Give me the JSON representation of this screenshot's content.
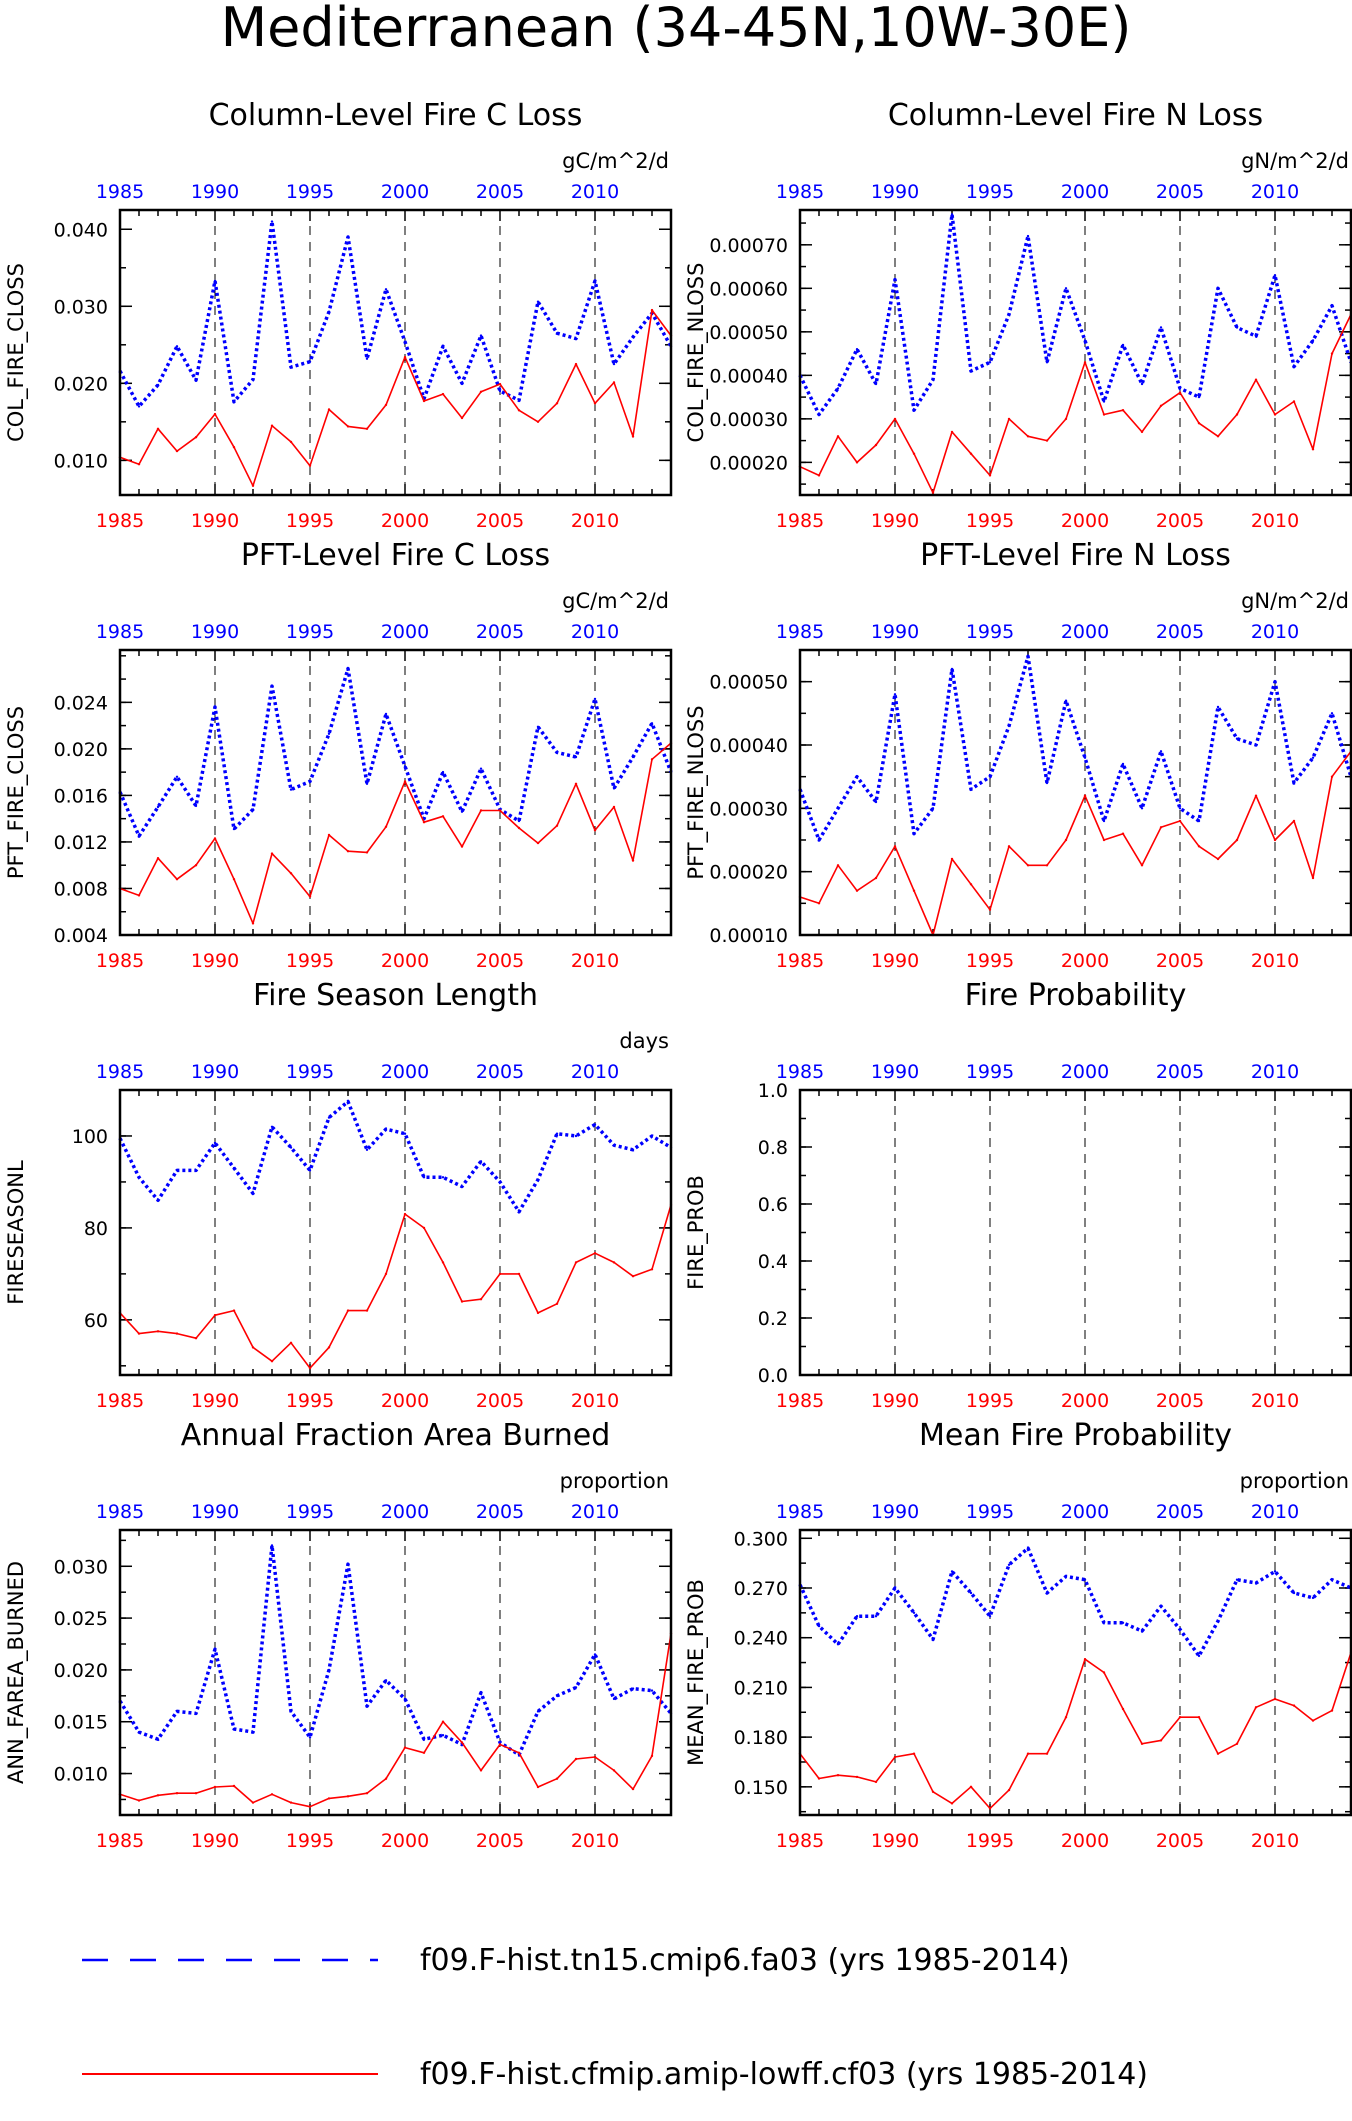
{
  "page_title": "Mediterranean (34-45N,10W-30E)",
  "legend": [
    {
      "label": "f09.F-hist.tn15.cmip6.fa03 (yrs 1985-2014)",
      "color": "#0000ff",
      "style": "dashed"
    },
    {
      "label": "f09.F-hist.cfmip.amip-lowff.cf03 (yrs 1985-2014)",
      "color": "#ff0000",
      "style": "solid"
    }
  ],
  "colors": {
    "top_axis": "#0000ff",
    "bottom_axis": "#ff0000",
    "blue_series": "#0000ff",
    "red_series": "#ff0000",
    "frame": "#000000"
  },
  "chart_data": [
    {
      "type": "line",
      "title": "Column-Level Fire C Loss",
      "units": "gC/m^2/d",
      "ylabel": "COL_FIRE_CLOSS",
      "xlim": [
        1985,
        2014
      ],
      "ylim": [
        0.0055,
        0.0425
      ],
      "yticks": [
        0.01,
        0.02,
        0.03,
        0.04
      ],
      "ytick_labels": [
        "0.010",
        "0.020",
        "0.030",
        "0.040"
      ],
      "xticks": [
        1985,
        1990,
        1995,
        2000,
        2005,
        2010
      ],
      "xtick_labels": [
        "1985",
        "1990",
        "1995",
        "2000",
        "2005",
        "2010"
      ],
      "grid": "dashed vertical lines at 1990, 1995, 2000, 2005, 2010",
      "x": [
        1985,
        1986,
        1987,
        1988,
        1989,
        1990,
        1991,
        1992,
        1993,
        1994,
        1995,
        1996,
        1997,
        1998,
        1999,
        2000,
        2001,
        2002,
        2003,
        2004,
        2005,
        2006,
        2007,
        2008,
        2009,
        2010,
        2011,
        2012,
        2013,
        2014
      ],
      "series": [
        {
          "values": [
            0.0216,
            0.017,
            0.0198,
            0.0248,
            0.0204,
            0.0333,
            0.0176,
            0.0205,
            0.041,
            0.0221,
            0.0228,
            0.0293,
            0.039,
            0.0232,
            0.0322,
            0.0254,
            0.018,
            0.0248,
            0.02,
            0.0262,
            0.019,
            0.0178,
            0.0306,
            0.0265,
            0.0258,
            0.0333,
            0.0225,
            0.026,
            0.0291,
            0.0248
          ]
        },
        {
          "values": [
            0.0104,
            0.0095,
            0.0141,
            0.0112,
            0.013,
            0.016,
            0.0117,
            0.0067,
            0.0145,
            0.0124,
            0.0093,
            0.0166,
            0.0144,
            0.0141,
            0.0172,
            0.0234,
            0.0177,
            0.0186,
            0.0155,
            0.0189,
            0.0199,
            0.0165,
            0.015,
            0.0174,
            0.0225,
            0.0174,
            0.0201,
            0.0131,
            0.0295,
            0.0262
          ]
        }
      ]
    },
    {
      "type": "line",
      "title": "Column-Level Fire N Loss",
      "units": "gN/m^2/d",
      "ylabel": "COL_FIRE_NLOSS",
      "xlim": [
        1985,
        2014
      ],
      "ylim": [
        0.000125,
        0.00078
      ],
      "yticks": [
        0.0002,
        0.0003,
        0.0004,
        0.0005,
        0.0006,
        0.0007
      ],
      "ytick_labels": [
        "0.00020",
        "0.00030",
        "0.00040",
        "0.00050",
        "0.00060",
        "0.00070"
      ],
      "xticks": [
        1985,
        1990,
        1995,
        2000,
        2005,
        2010
      ],
      "xtick_labels": [
        "1985",
        "1990",
        "1995",
        "2000",
        "2005",
        "2010"
      ],
      "grid": "dashed vertical lines at 1990, 1995, 2000, 2005, 2010",
      "x": [
        1985,
        1986,
        1987,
        1988,
        1989,
        1990,
        1991,
        1992,
        1993,
        1994,
        1995,
        1996,
        1997,
        1998,
        1999,
        2000,
        2001,
        2002,
        2003,
        2004,
        2005,
        2006,
        2007,
        2008,
        2009,
        2010,
        2011,
        2012,
        2013,
        2014
      ],
      "series": [
        {
          "values": [
            0.0004,
            0.00031,
            0.00037,
            0.00046,
            0.00038,
            0.00062,
            0.00032,
            0.00039,
            0.00077,
            0.00041,
            0.00043,
            0.00054,
            0.00072,
            0.00043,
            0.0006,
            0.00048,
            0.00034,
            0.00047,
            0.00038,
            0.00051,
            0.00037,
            0.00035,
            0.0006,
            0.00051,
            0.00049,
            0.00063,
            0.00042,
            0.00048,
            0.00056,
            0.00043
          ]
        },
        {
          "values": [
            0.00019,
            0.00017,
            0.00026,
            0.0002,
            0.00024,
            0.0003,
            0.00022,
            0.00013,
            0.00027,
            0.00022,
            0.00017,
            0.0003,
            0.00026,
            0.00025,
            0.0003,
            0.00043,
            0.00031,
            0.00032,
            0.00027,
            0.00033,
            0.00036,
            0.00029,
            0.00026,
            0.00031,
            0.00039,
            0.00031,
            0.00034,
            0.00023,
            0.00045,
            0.00054
          ]
        }
      ]
    },
    {
      "type": "line",
      "title": "PFT-Level Fire C Loss",
      "units": "gC/m^2/d",
      "ylabel": "PFT_FIRE_CLOSS",
      "xlim": [
        1985,
        2014
      ],
      "ylim": [
        0.004,
        0.0285
      ],
      "yticks": [
        0.004,
        0.008,
        0.012,
        0.016,
        0.02,
        0.024
      ],
      "ytick_labels": [
        "0.004",
        "0.008",
        "0.012",
        "0.016",
        "0.020",
        "0.024"
      ],
      "xticks": [
        1985,
        1990,
        1995,
        2000,
        2005,
        2010
      ],
      "xtick_labels": [
        "1985",
        "1990",
        "1995",
        "2000",
        "2005",
        "2010"
      ],
      "grid": "dashed vertical lines at 1990, 1995, 2000, 2005, 2010",
      "x": [
        1985,
        1986,
        1987,
        1988,
        1989,
        1990,
        1991,
        1992,
        1993,
        1994,
        1995,
        1996,
        1997,
        1998,
        1999,
        2000,
        2001,
        2002,
        2003,
        2004,
        2005,
        2006,
        2007,
        2008,
        2009,
        2010,
        2011,
        2012,
        2013,
        2014
      ],
      "series": [
        {
          "values": [
            0.0163,
            0.0125,
            0.015,
            0.0176,
            0.0151,
            0.0236,
            0.0131,
            0.0148,
            0.0254,
            0.0165,
            0.0172,
            0.0213,
            0.0269,
            0.017,
            0.023,
            0.0185,
            0.014,
            0.018,
            0.0146,
            0.0183,
            0.0148,
            0.0138,
            0.0219,
            0.0197,
            0.0193,
            0.0243,
            0.0166,
            0.0193,
            0.0222,
            0.018
          ]
        },
        {
          "values": [
            0.008,
            0.0074,
            0.0106,
            0.0088,
            0.01,
            0.0123,
            0.0088,
            0.005,
            0.011,
            0.0093,
            0.0073,
            0.0126,
            0.0112,
            0.0111,
            0.0133,
            0.0172,
            0.0137,
            0.0142,
            0.0116,
            0.0147,
            0.0147,
            0.0132,
            0.0119,
            0.0134,
            0.017,
            0.013,
            0.015,
            0.0104,
            0.0191,
            0.0205
          ]
        }
      ]
    },
    {
      "type": "line",
      "title": "PFT-Level Fire N Loss",
      "units": "gN/m^2/d",
      "ylabel": "PFT_FIRE_NLOSS",
      "xlim": [
        1985,
        2014
      ],
      "ylim": [
        0.0001,
        0.00055
      ],
      "yticks": [
        0.0001,
        0.0002,
        0.0003,
        0.0004,
        0.0005
      ],
      "ytick_labels": [
        "0.00010",
        "0.00020",
        "0.00030",
        "0.00040",
        "0.00050"
      ],
      "xticks": [
        1985,
        1990,
        1995,
        2000,
        2005,
        2010
      ],
      "xtick_labels": [
        "1985",
        "1990",
        "1995",
        "2000",
        "2005",
        "2010"
      ],
      "grid": "dashed vertical lines at 1990, 1995, 2000, 2005, 2010",
      "x": [
        1985,
        1986,
        1987,
        1988,
        1989,
        1990,
        1991,
        1992,
        1993,
        1994,
        1995,
        1996,
        1997,
        1998,
        1999,
        2000,
        2001,
        2002,
        2003,
        2004,
        2005,
        2006,
        2007,
        2008,
        2009,
        2010,
        2011,
        2012,
        2013,
        2014
      ],
      "series": [
        {
          "values": [
            0.00033,
            0.00025,
            0.0003,
            0.00035,
            0.00031,
            0.00048,
            0.00026,
            0.0003,
            0.00052,
            0.00033,
            0.00035,
            0.00043,
            0.00054,
            0.00034,
            0.00047,
            0.00038,
            0.00028,
            0.00037,
            0.0003,
            0.00039,
            0.0003,
            0.00028,
            0.00046,
            0.00041,
            0.0004,
            0.0005,
            0.00034,
            0.00038,
            0.00045,
            0.00035
          ]
        },
        {
          "values": [
            0.00016,
            0.00015,
            0.00021,
            0.00017,
            0.00019,
            0.00024,
            0.00017,
            0.0001,
            0.00022,
            0.00018,
            0.00014,
            0.00024,
            0.00021,
            0.00021,
            0.00025,
            0.00032,
            0.00025,
            0.00026,
            0.00021,
            0.00027,
            0.00028,
            0.00024,
            0.00022,
            0.00025,
            0.00032,
            0.00025,
            0.00028,
            0.00019,
            0.00035,
            0.00039
          ]
        }
      ]
    },
    {
      "type": "line",
      "title": "Fire Season Length",
      "units": "days",
      "ylabel": "FIRESEASONL",
      "xlim": [
        1985,
        2014
      ],
      "ylim": [
        48,
        110
      ],
      "yticks": [
        60,
        80,
        100
      ],
      "ytick_labels": [
        "60",
        "80",
        "100"
      ],
      "xticks": [
        1985,
        1990,
        1995,
        2000,
        2005,
        2010
      ],
      "xtick_labels": [
        "1985",
        "1990",
        "1995",
        "2000",
        "2005",
        "2010"
      ],
      "grid": "dashed vertical lines at 1990, 1995, 2000, 2005, 2010",
      "x": [
        1985,
        1986,
        1987,
        1988,
        1989,
        1990,
        1991,
        1992,
        1993,
        1994,
        1995,
        1996,
        1997,
        1998,
        1999,
        2000,
        2001,
        2002,
        2003,
        2004,
        2005,
        2006,
        2007,
        2008,
        2009,
        2010,
        2011,
        2012,
        2013,
        2014
      ],
      "series": [
        {
          "values": [
            99.5,
            91,
            86,
            92.5,
            92.5,
            98.5,
            93,
            87.5,
            102,
            97.5,
            92.5,
            104,
            107.5,
            97,
            101.5,
            100.5,
            91,
            91,
            89,
            94.5,
            90,
            83.5,
            90.5,
            100.5,
            100,
            102.5,
            98,
            97,
            100,
            97.5
          ]
        },
        {
          "values": [
            61.5,
            57,
            57.5,
            57,
            56,
            61,
            62,
            54,
            51,
            55,
            49.5,
            54,
            62,
            62,
            70,
            83,
            80,
            72.5,
            64,
            64.5,
            70,
            70,
            61.5,
            63.5,
            72.5,
            74.5,
            72.5,
            69.5,
            71,
            85
          ]
        }
      ]
    },
    {
      "type": "line",
      "title": "Fire Probability",
      "units": "",
      "ylabel": "FIRE_PROB",
      "xlim": [
        1985,
        2014
      ],
      "ylim": [
        0,
        1
      ],
      "yticks": [
        0,
        0.2,
        0.4,
        0.6,
        0.8,
        1.0
      ],
      "ytick_labels": [
        "0.0",
        "0.2",
        "0.4",
        "0.6",
        "0.8",
        "1.0"
      ],
      "xticks": [
        1985,
        1990,
        1995,
        2000,
        2005,
        2010
      ],
      "xtick_labels": [
        "1985",
        "1990",
        "1995",
        "2000",
        "2005",
        "2010"
      ],
      "grid": "dashed vertical lines at 1990, 1995, 2000, 2005, 2010",
      "x": [],
      "series": []
    },
    {
      "type": "line",
      "title": "Annual Fraction Area Burned",
      "units": "proportion",
      "ylabel": "ANN_FAREA_BURNED",
      "xlim": [
        1985,
        2014
      ],
      "ylim": [
        0.006,
        0.0335
      ],
      "yticks": [
        0.01,
        0.015,
        0.02,
        0.025,
        0.03
      ],
      "ytick_labels": [
        "0.010",
        "0.015",
        "0.020",
        "0.025",
        "0.030"
      ],
      "xticks": [
        1985,
        1990,
        1995,
        2000,
        2005,
        2010
      ],
      "xtick_labels": [
        "1985",
        "1990",
        "1995",
        "2000",
        "2005",
        "2010"
      ],
      "grid": "dashed vertical lines at 1990, 1995, 2000, 2005, 2010",
      "x": [
        1985,
        1986,
        1987,
        1988,
        1989,
        1990,
        1991,
        1992,
        1993,
        1994,
        1995,
        1996,
        1997,
        1998,
        1999,
        2000,
        2001,
        2002,
        2003,
        2004,
        2005,
        2006,
        2007,
        2008,
        2009,
        2010,
        2011,
        2012,
        2013,
        2014
      ],
      "series": [
        {
          "values": [
            0.017,
            0.014,
            0.0133,
            0.016,
            0.0158,
            0.022,
            0.0143,
            0.014,
            0.032,
            0.016,
            0.0135,
            0.02,
            0.0302,
            0.0165,
            0.019,
            0.0172,
            0.0133,
            0.0137,
            0.0128,
            0.0178,
            0.013,
            0.0118,
            0.016,
            0.0175,
            0.0183,
            0.0215,
            0.0172,
            0.0182,
            0.018,
            0.0158
          ]
        },
        {
          "values": [
            0.008,
            0.0074,
            0.0079,
            0.0081,
            0.0081,
            0.0087,
            0.0088,
            0.0072,
            0.008,
            0.0072,
            0.0068,
            0.0076,
            0.0078,
            0.0081,
            0.0095,
            0.0125,
            0.012,
            0.015,
            0.013,
            0.0103,
            0.0128,
            0.012,
            0.0087,
            0.0095,
            0.0114,
            0.0116,
            0.0103,
            0.0085,
            0.0117,
            0.0235
          ]
        }
      ]
    },
    {
      "type": "line",
      "title": "Mean Fire Probability",
      "units": "proportion",
      "ylabel": "MEAN_FIRE_PROB",
      "xlim": [
        1985,
        2014
      ],
      "ylim": [
        0.133,
        0.305
      ],
      "yticks": [
        0.15,
        0.18,
        0.21,
        0.24,
        0.27,
        0.3
      ],
      "ytick_labels": [
        "0.150",
        "0.180",
        "0.210",
        "0.240",
        "0.270",
        "0.300"
      ],
      "xticks": [
        1985,
        1990,
        1995,
        2000,
        2005,
        2010
      ],
      "xtick_labels": [
        "1985",
        "1990",
        "1995",
        "2000",
        "2005",
        "2010"
      ],
      "grid": "dashed vertical lines at 1990, 1995, 2000, 2005, 2010",
      "x": [
        1985,
        1986,
        1987,
        1988,
        1989,
        1990,
        1991,
        1992,
        1993,
        1994,
        1995,
        1996,
        1997,
        1998,
        1999,
        2000,
        2001,
        2002,
        2003,
        2004,
        2005,
        2006,
        2007,
        2008,
        2009,
        2010,
        2011,
        2012,
        2013,
        2014
      ],
      "series": [
        {
          "values": [
            0.272,
            0.247,
            0.236,
            0.253,
            0.253,
            0.27,
            0.255,
            0.239,
            0.28,
            0.267,
            0.253,
            0.284,
            0.294,
            0.267,
            0.277,
            0.275,
            0.249,
            0.249,
            0.244,
            0.259,
            0.245,
            0.229,
            0.25,
            0.275,
            0.273,
            0.28,
            0.267,
            0.264,
            0.275,
            0.27
          ]
        },
        {
          "values": [
            0.17,
            0.155,
            0.157,
            0.156,
            0.153,
            0.168,
            0.17,
            0.147,
            0.14,
            0.15,
            0.137,
            0.148,
            0.17,
            0.17,
            0.192,
            0.227,
            0.219,
            0.197,
            0.176,
            0.178,
            0.192,
            0.192,
            0.17,
            0.176,
            0.198,
            0.203,
            0.199,
            0.19,
            0.196,
            0.231
          ]
        }
      ]
    }
  ]
}
